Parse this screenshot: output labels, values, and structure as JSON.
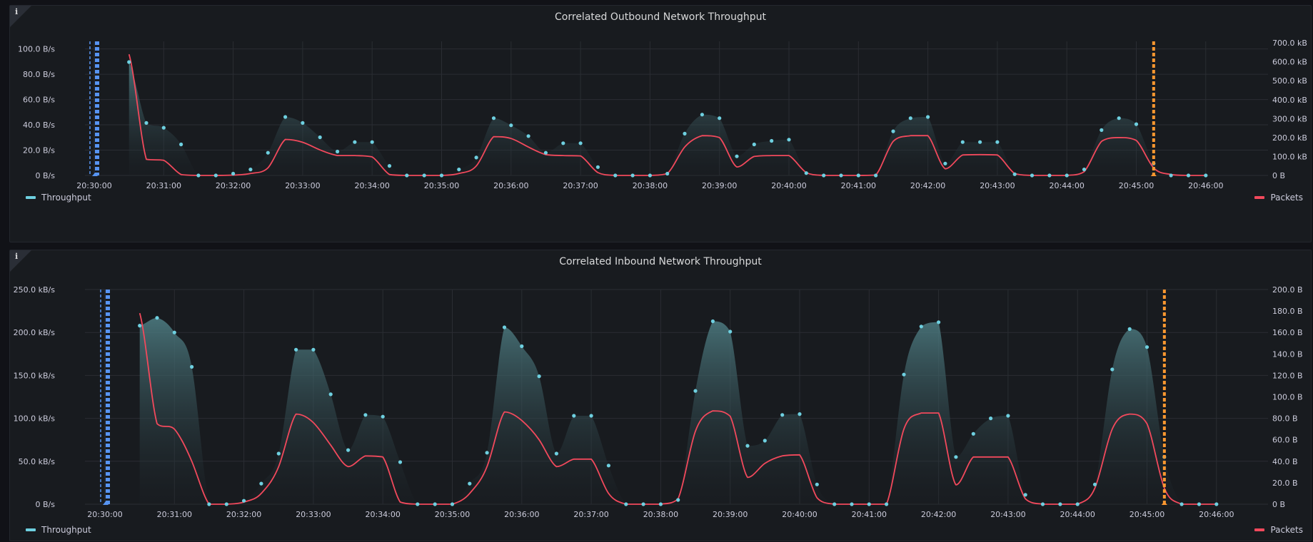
{
  "colors": {
    "throughput": "#6ed0e0",
    "packets": "#f2495c",
    "marker_start": "#5794f2",
    "marker_end": "#ff9830",
    "grid": "#2a2d33",
    "axis_text": "#ccccdc"
  },
  "icons": [
    "info-icon"
  ],
  "chart_data": [
    {
      "type": "area",
      "title": "Correlated Outbound Network Throughput",
      "info_glyph": "i",
      "x_ticks": [
        "20:30:00",
        "20:31:00",
        "20:32:00",
        "20:33:00",
        "20:34:00",
        "20:35:00",
        "20:36:00",
        "20:37:00",
        "20:38:00",
        "20:39:00",
        "20:40:00",
        "20:41:00",
        "20:42:00",
        "20:43:00",
        "20:44:00",
        "20:45:00",
        "20:46:00"
      ],
      "xlim": [
        "20:30:00",
        "20:46:30"
      ],
      "y_left": {
        "ticks": [
          "0 B/s",
          "20.0 B/s",
          "40.0 B/s",
          "60.0 B/s",
          "80.0 B/s",
          "100.0 B/s"
        ],
        "lim": [
          0,
          106
        ]
      },
      "y_right": {
        "ticks": [
          "0 B",
          "100.0 kB",
          "200.0 kB",
          "300.0 kB",
          "400.0 kB",
          "500.0 kB",
          "600.0 kB",
          "700.0 kB"
        ],
        "lim": [
          0,
          700
        ]
      },
      "markers": {
        "start": "20:30:00",
        "end": "20:45:15"
      },
      "series": [
        {
          "name": "Throughput",
          "axis": "left",
          "x": [
            "20:30:30",
            "20:30:45",
            "20:31:00",
            "20:31:15",
            "20:31:30",
            "20:31:45",
            "20:32:00",
            "20:32:15",
            "20:32:30",
            "20:32:45",
            "20:33:00",
            "20:33:15",
            "20:33:30",
            "20:33:45",
            "20:34:00",
            "20:34:15",
            "20:34:30",
            "20:34:45",
            "20:35:00",
            "20:35:15",
            "20:35:30",
            "20:35:45",
            "20:36:00",
            "20:36:15",
            "20:36:30",
            "20:36:45",
            "20:37:00",
            "20:37:15",
            "20:37:30",
            "20:37:45",
            "20:38:00",
            "20:38:15",
            "20:38:30",
            "20:38:45",
            "20:39:00",
            "20:39:15",
            "20:39:30",
            "20:39:45",
            "20:40:00",
            "20:40:15",
            "20:40:30",
            "20:40:45",
            "20:41:00",
            "20:41:15",
            "20:41:30",
            "20:41:45",
            "20:42:00",
            "20:42:15",
            "20:42:30",
            "20:42:45",
            "20:43:00",
            "20:43:15",
            "20:43:30",
            "20:43:45",
            "20:44:00",
            "20:44:15",
            "20:44:30",
            "20:44:45",
            "20:45:00",
            "20:45:15",
            "20:45:30",
            "20:45:45",
            "20:46:00"
          ],
          "y": [
            95,
            44,
            40,
            26,
            0,
            0,
            1.5,
            5,
            19,
            49,
            44,
            32,
            20,
            28,
            28,
            8,
            0,
            0,
            0,
            5,
            15,
            48,
            42,
            33,
            19,
            27,
            27,
            7,
            0,
            0,
            0,
            1.5,
            35,
            51,
            48,
            16,
            26,
            29,
            30,
            2,
            0,
            0,
            0,
            0,
            37,
            48,
            49,
            10,
            28,
            28,
            28,
            1,
            0,
            0,
            0,
            5,
            38,
            48,
            43,
            10,
            0,
            0,
            0
          ]
        },
        {
          "name": "Packets",
          "axis": "right",
          "x": [
            "20:30:30",
            "20:30:45",
            "20:31:00",
            "20:31:15",
            "20:31:30",
            "20:31:45",
            "20:32:00",
            "20:32:15",
            "20:32:30",
            "20:32:45",
            "20:33:00",
            "20:33:15",
            "20:33:30",
            "20:33:45",
            "20:34:00",
            "20:34:15",
            "20:34:30",
            "20:34:45",
            "20:35:00",
            "20:35:15",
            "20:35:30",
            "20:35:45",
            "20:36:00",
            "20:36:15",
            "20:36:30",
            "20:36:45",
            "20:37:00",
            "20:37:15",
            "20:37:30",
            "20:37:45",
            "20:38:00",
            "20:38:15",
            "20:38:30",
            "20:38:45",
            "20:39:00",
            "20:39:15",
            "20:39:30",
            "20:39:45",
            "20:40:00",
            "20:40:15",
            "20:40:30",
            "20:40:45",
            "20:41:00",
            "20:41:15",
            "20:41:30",
            "20:41:45",
            "20:42:00",
            "20:42:15",
            "20:42:30",
            "20:42:45",
            "20:43:00",
            "20:43:15",
            "20:43:30",
            "20:43:45",
            "20:44:00",
            "20:44:15",
            "20:44:30",
            "20:44:45",
            "20:45:00",
            "20:45:15",
            "20:45:30",
            "20:45:45",
            "20:46:00"
          ],
          "y": [
            640,
            85,
            80,
            5,
            0,
            0,
            2,
            10,
            40,
            190,
            175,
            135,
            105,
            105,
            98,
            5,
            0,
            0,
            0,
            10,
            50,
            205,
            195,
            150,
            110,
            105,
            103,
            15,
            0,
            0,
            0,
            10,
            150,
            210,
            200,
            45,
            100,
            105,
            105,
            15,
            0,
            0,
            0,
            2,
            180,
            210,
            210,
            35,
            108,
            110,
            108,
            10,
            0,
            0,
            0,
            20,
            180,
            200,
            185,
            40,
            5,
            0,
            0
          ]
        }
      ]
    },
    {
      "type": "area",
      "title": "Correlated Inbound Network Throughput",
      "info_glyph": "i",
      "x_ticks": [
        "20:30:00",
        "20:31:00",
        "20:32:00",
        "20:33:00",
        "20:34:00",
        "20:35:00",
        "20:36:00",
        "20:37:00",
        "20:38:00",
        "20:39:00",
        "20:40:00",
        "20:41:00",
        "20:42:00",
        "20:43:00",
        "20:44:00",
        "20:45:00",
        "20:46:00"
      ],
      "xlim": [
        "20:30:00",
        "20:46:30"
      ],
      "y_left": {
        "ticks": [
          "0 B/s",
          "50.0 kB/s",
          "100.0 kB/s",
          "150.0 kB/s",
          "200.0 kB/s",
          "250.0 kB/s"
        ],
        "lim": [
          0,
          250
        ]
      },
      "y_right": {
        "ticks": [
          "0 B",
          "20.0 B",
          "40.0 B",
          "60.0 B",
          "80.0 B",
          "100.0 B",
          "120.0 B",
          "140.0 B",
          "160.0 B",
          "180.0 B",
          "200.0 B"
        ],
        "lim": [
          0,
          200
        ]
      },
      "markers": {
        "start": "20:30:00",
        "end": "20:45:15"
      },
      "series": [
        {
          "name": "Throughput",
          "axis": "left",
          "x": [
            "20:30:30",
            "20:30:45",
            "20:31:00",
            "20:31:15",
            "20:31:30",
            "20:31:45",
            "20:32:00",
            "20:32:15",
            "20:32:30",
            "20:32:45",
            "20:33:00",
            "20:33:15",
            "20:33:30",
            "20:33:45",
            "20:34:00",
            "20:34:15",
            "20:34:30",
            "20:34:45",
            "20:35:00",
            "20:35:15",
            "20:35:30",
            "20:35:45",
            "20:36:00",
            "20:36:15",
            "20:36:30",
            "20:36:45",
            "20:37:00",
            "20:37:15",
            "20:37:30",
            "20:37:45",
            "20:38:00",
            "20:38:15",
            "20:38:30",
            "20:38:45",
            "20:39:00",
            "20:39:15",
            "20:39:30",
            "20:39:45",
            "20:40:00",
            "20:40:15",
            "20:40:30",
            "20:40:45",
            "20:41:00",
            "20:41:15",
            "20:41:30",
            "20:41:45",
            "20:42:00",
            "20:42:15",
            "20:42:30",
            "20:42:45",
            "20:43:00",
            "20:43:15",
            "20:43:30",
            "20:43:45",
            "20:44:00",
            "20:44:15",
            "20:44:30",
            "20:44:45",
            "20:45:00",
            "20:45:15",
            "20:45:30",
            "20:45:45",
            "20:46:00"
          ],
          "y": [
            208,
            217,
            200,
            160,
            0,
            0,
            4,
            24,
            59,
            180,
            180,
            128,
            63,
            104,
            102,
            49,
            0,
            0,
            0,
            24,
            60,
            206,
            184,
            149,
            59,
            103,
            103,
            45,
            0,
            0,
            0,
            5,
            132,
            213,
            201,
            68,
            74,
            104,
            105,
            23,
            0,
            0,
            0,
            0,
            151,
            207,
            212,
            55,
            82,
            100,
            103,
            11,
            0,
            0,
            0,
            23,
            157,
            204,
            183,
            55,
            0,
            0,
            0
          ]
        },
        {
          "name": "Packets",
          "axis": "right",
          "x": [
            "20:30:30",
            "20:30:45",
            "20:31:00",
            "20:31:15",
            "20:31:30",
            "20:31:45",
            "20:32:00",
            "20:32:15",
            "20:32:30",
            "20:32:45",
            "20:33:00",
            "20:33:15",
            "20:33:30",
            "20:33:45",
            "20:34:00",
            "20:34:15",
            "20:34:30",
            "20:34:45",
            "20:35:00",
            "20:35:15",
            "20:35:30",
            "20:35:45",
            "20:36:00",
            "20:36:15",
            "20:36:30",
            "20:36:45",
            "20:37:00",
            "20:37:15",
            "20:37:30",
            "20:37:45",
            "20:38:00",
            "20:38:15",
            "20:38:30",
            "20:38:45",
            "20:39:00",
            "20:39:15",
            "20:39:30",
            "20:39:45",
            "20:40:00",
            "20:40:15",
            "20:40:30",
            "20:40:45",
            "20:41:00",
            "20:41:15",
            "20:41:30",
            "20:41:45",
            "20:42:00",
            "20:42:15",
            "20:42:30",
            "20:42:45",
            "20:43:00",
            "20:43:15",
            "20:43:30",
            "20:43:45",
            "20:44:00",
            "20:44:15",
            "20:44:30",
            "20:44:45",
            "20:45:00",
            "20:45:15",
            "20:45:30",
            "20:45:45",
            "20:46:00"
          ],
          "y": [
            178,
            75,
            70,
            40,
            0,
            0,
            2,
            10,
            35,
            84,
            76,
            55,
            35,
            45,
            44,
            2,
            0,
            0,
            0,
            10,
            35,
            86,
            78,
            60,
            35,
            42,
            42,
            10,
            0,
            0,
            0,
            5,
            68,
            87,
            82,
            25,
            38,
            45,
            46,
            6,
            0,
            0,
            0,
            0,
            70,
            85,
            85,
            18,
            44,
            44,
            44,
            5,
            0,
            0,
            0,
            15,
            70,
            84,
            75,
            15,
            0,
            0,
            0
          ]
        }
      ]
    }
  ]
}
